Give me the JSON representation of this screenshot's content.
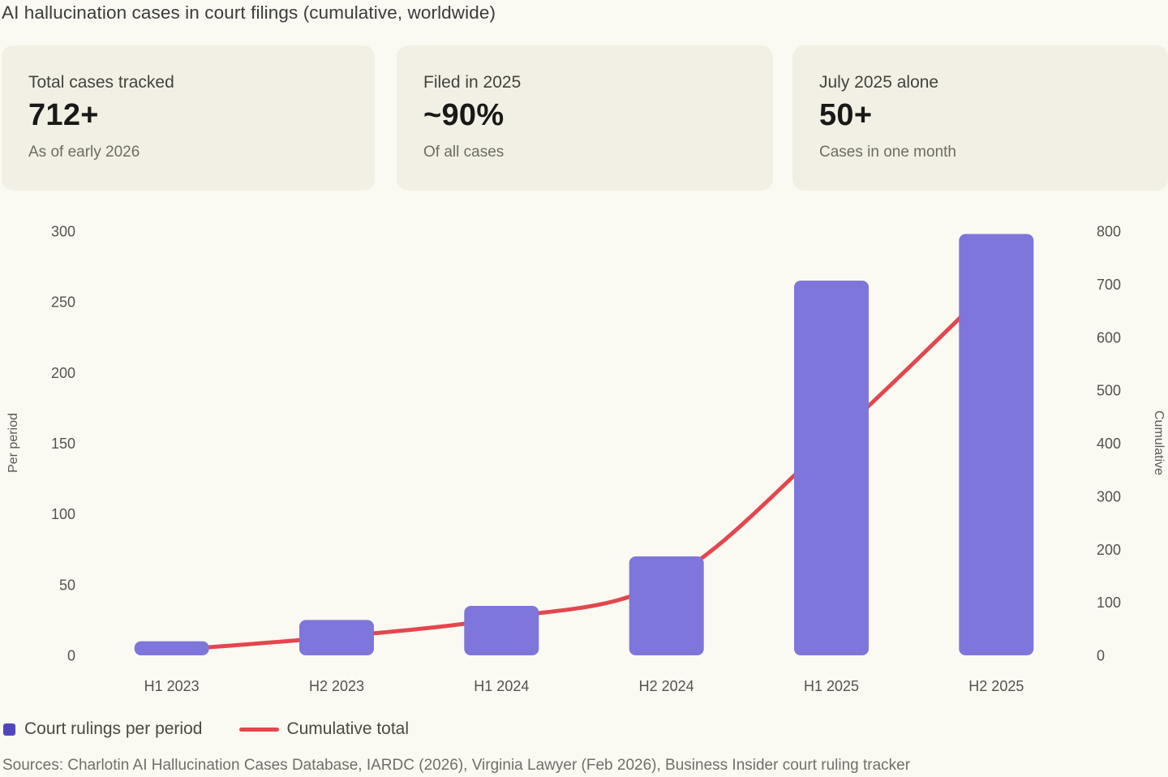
{
  "header": {
    "title": "AI hallucination cases in court filings (cumulative, worldwide)"
  },
  "stat_cards": [
    {
      "label": "Total cases tracked",
      "value": "712+",
      "note": "As of early 2026"
    },
    {
      "label": "Filed in 2025",
      "value": "~90%",
      "note": "Of all cases"
    },
    {
      "label": "July 2025 alone",
      "value": "50+",
      "note": "Cases in one month"
    }
  ],
  "chart_data": {
    "type": "bar+line combo",
    "categories": [
      "H1 2023",
      "H2 2023",
      "H1 2024",
      "H2 2024",
      "H1 2025",
      "H2 2025"
    ],
    "series": [
      {
        "name": "Court rulings per period",
        "type": "bar",
        "axis": "left",
        "color": "#7e76db",
        "legend_color": "#5246bc",
        "values": [
          10,
          25,
          35,
          70,
          265,
          298
        ]
      },
      {
        "name": "Cumulative total",
        "type": "line",
        "axis": "right",
        "color": "#e4464e",
        "values": [
          10,
          35,
          70,
          140,
          405,
          703
        ]
      }
    ],
    "left_axis": {
      "label": "Per period",
      "min": 0,
      "max": 300,
      "ticks": [
        0,
        50,
        100,
        150,
        200,
        250,
        300
      ]
    },
    "right_axis": {
      "label": "Cumulative",
      "min": 0,
      "max": 800,
      "ticks": [
        0,
        100,
        200,
        300,
        400,
        500,
        600,
        700,
        800
      ]
    },
    "grid": false,
    "legend_position": "bottom-left",
    "tick_color": "#54544e",
    "axis_title_color": "#5a5a54",
    "category_label_color": "#53534d"
  },
  "footer": {
    "sources": "Sources: Charlotin AI Hallucination Cases Database, IARDC (2026), Virginia Lawyer (Feb 2026), Business Insider court ruling tracker"
  }
}
